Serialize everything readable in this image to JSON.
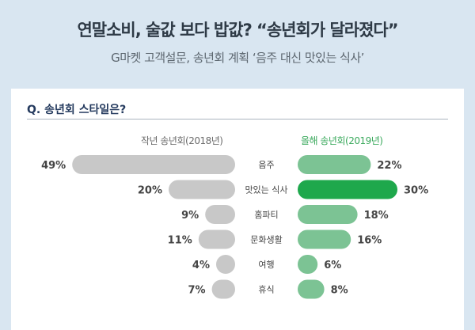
{
  "header": {
    "title": "연말소비, 술값 보다 밥값? “송년회가 달라졌다”",
    "subtitle": "G마켓 고객설문, 송년회 계획 ‘음주 대신 맛있는 식사’"
  },
  "chart_data": {
    "type": "bar",
    "title": "Q. 송년회 스타일은?",
    "categories": [
      "음주",
      "맛있는 식사",
      "홈파티",
      "문화생활",
      "여행",
      "휴식"
    ],
    "series": [
      {
        "name": "작년 송년회(2018년)",
        "values": [
          49,
          20,
          9,
          11,
          4,
          7
        ],
        "color": "#c8c8c8"
      },
      {
        "name": "올해 송년회(2019년)",
        "values": [
          22,
          30,
          18,
          16,
          6,
          8
        ],
        "color": "#7cc394",
        "highlight_color": "#1ea84c",
        "highlight_index": 1
      }
    ],
    "value_labels": {
      "left": [
        "49%",
        "20%",
        "9%",
        "11%",
        "4%",
        "7%"
      ],
      "right": [
        "22%",
        "30%",
        "18%",
        "16%",
        "6%",
        "8%"
      ]
    },
    "unit": "%"
  }
}
